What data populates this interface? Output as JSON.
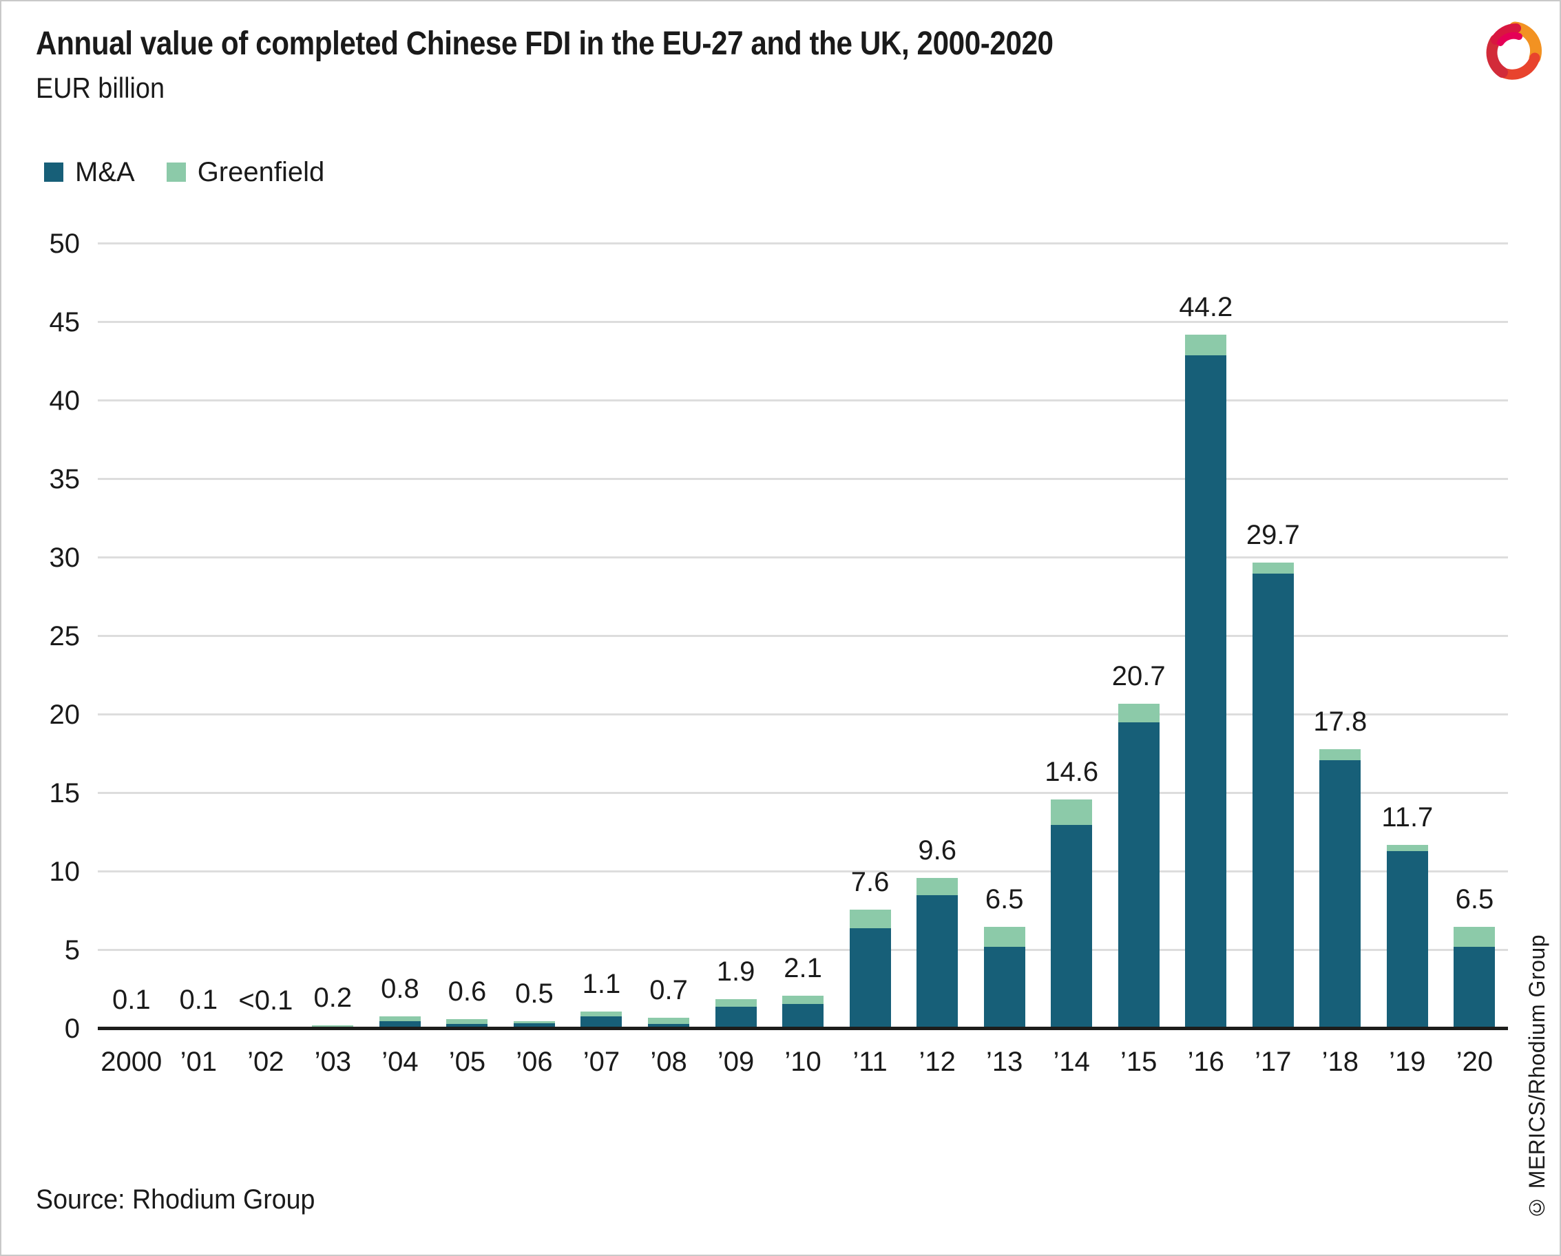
{
  "header": {
    "title": "Annual value of completed Chinese FDI in the EU-27 and the UK, 2000-2020",
    "subtitle": "EUR billion"
  },
  "legend": {
    "items": [
      {
        "label": "M&A",
        "color": "#175f78"
      },
      {
        "label": "Greenfield",
        "color": "#8ccaa9"
      }
    ]
  },
  "footer": {
    "source": "Source: Rhodium Group",
    "copyright": "© MERICS/Rhodium Group"
  },
  "logo": {
    "name": "merics-logo",
    "colors": {
      "crimson": "#d22b39",
      "magenta": "#e50056",
      "orange": "#f29222",
      "red_orange": "#e8432d"
    }
  },
  "colors": {
    "mna_bar": "#175f78",
    "greenfield_bar": "#8ccaa9",
    "gridline": "#dddddd",
    "axis": "#1d1d1b",
    "text": "#1a1a1a"
  },
  "chart_data": {
    "type": "bar",
    "stacked": true,
    "title": "Annual value of completed Chinese FDI in the EU-27 and the UK, 2000-2020",
    "unit": "EUR billion",
    "xlabel": "",
    "ylabel": "EUR billion",
    "ylim": [
      0,
      50
    ],
    "yticks": [
      0,
      5,
      10,
      15,
      20,
      25,
      30,
      35,
      40,
      45,
      50
    ],
    "grid": true,
    "legend_position": "top-left",
    "categories": [
      "2000",
      "’01",
      "’02",
      "’03",
      "’04",
      "’05",
      "’06",
      "’07",
      "’08",
      "’09",
      "’10",
      "’11",
      "’12",
      "’13",
      "’14",
      "’15",
      "’16",
      "’17",
      "’18",
      "’19",
      "’20"
    ],
    "series": [
      {
        "name": "M&A",
        "color": "#175f78",
        "values": [
          0,
          0,
          0,
          0,
          0.5,
          0.3,
          0.35,
          0.8,
          0.3,
          1.4,
          1.6,
          6.4,
          8.5,
          5.2,
          13.0,
          19.5,
          42.9,
          29.0,
          17.1,
          11.3,
          5.2
        ]
      },
      {
        "name": "Greenfield",
        "color": "#8ccaa9",
        "values": [
          0.1,
          0.1,
          0.03,
          0.2,
          0.3,
          0.3,
          0.15,
          0.3,
          0.4,
          0.5,
          0.5,
          1.2,
          1.1,
          1.3,
          1.6,
          1.2,
          1.3,
          0.7,
          0.7,
          0.4,
          1.3
        ]
      }
    ],
    "total_labels": [
      "0.1",
      "0.1",
      "<0.1",
      "0.2",
      "0.8",
      "0.6",
      "0.5",
      "1.1",
      "0.7",
      "1.9",
      "2.1",
      "7.6",
      "9.6",
      "6.5",
      "14.6",
      "20.7",
      "44.2",
      "29.7",
      "17.8",
      "11.7",
      "6.5"
    ]
  }
}
